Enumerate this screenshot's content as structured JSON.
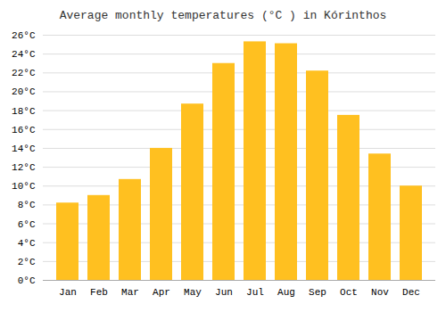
{
  "chart_data": {
    "type": "bar",
    "title": "Average monthly temperatures (°C ) in Kórinthos",
    "categories": [
      "Jan",
      "Feb",
      "Mar",
      "Apr",
      "May",
      "Jun",
      "Jul",
      "Aug",
      "Sep",
      "Oct",
      "Nov",
      "Dec"
    ],
    "values": [
      8.2,
      9.0,
      10.7,
      14.0,
      18.7,
      23.0,
      25.3,
      25.1,
      22.2,
      17.5,
      13.4,
      10.0
    ],
    "color": "#FFC020",
    "ylim": [
      0,
      26
    ],
    "yticks": [
      {
        "value": 0,
        "label": "0°C"
      },
      {
        "value": 2,
        "label": "2°C"
      },
      {
        "value": 4,
        "label": "4°C"
      },
      {
        "value": 6,
        "label": "6°C"
      },
      {
        "value": 8,
        "label": "8°C"
      },
      {
        "value": 10,
        "label": "10°C"
      },
      {
        "value": 12,
        "label": "12°C"
      },
      {
        "value": 14,
        "label": "14°C"
      },
      {
        "value": 16,
        "label": "16°C"
      },
      {
        "value": 18,
        "label": "18°C"
      },
      {
        "value": 20,
        "label": "20°C"
      },
      {
        "value": 22,
        "label": "22°C"
      },
      {
        "value": 24,
        "label": "24°C"
      },
      {
        "value": 26,
        "label": "26°C"
      }
    ],
    "grid": true
  }
}
